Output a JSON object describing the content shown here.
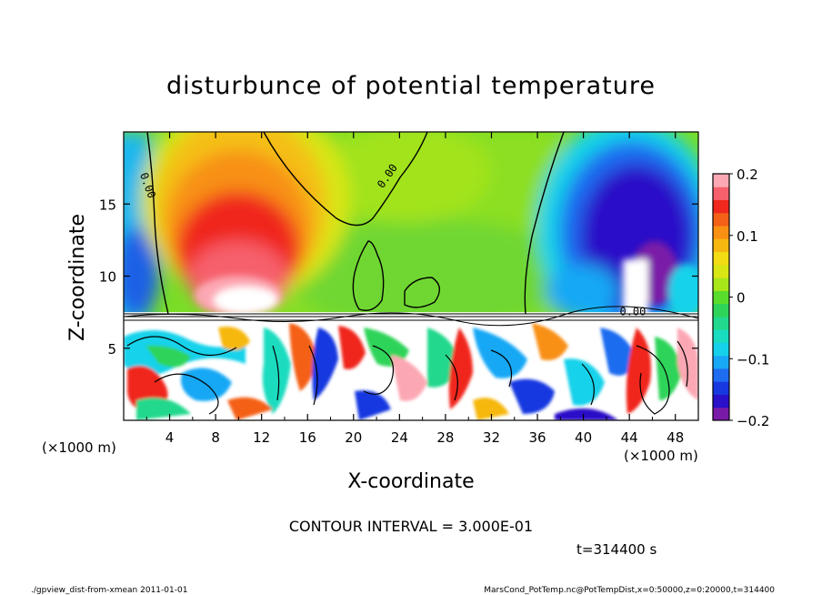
{
  "chart_data": {
    "type": "heatmap",
    "title": "disturbunce of potential temperature",
    "xlabel": "X-coordinate",
    "ylabel": "Z-coordinate",
    "x_unit": "(×1000 m)",
    "y_unit": "(×1000 m)",
    "xlim": [
      0,
      50
    ],
    "ylim": [
      0,
      20
    ],
    "x_ticks": [
      4,
      8,
      12,
      16,
      20,
      24,
      28,
      32,
      36,
      40,
      44,
      48
    ],
    "y_ticks": [
      5,
      10,
      15
    ],
    "colorbar": {
      "min": -0.2,
      "max": 0.2,
      "ticks": [
        {
          "value": 0.2,
          "label": "0.2"
        },
        {
          "value": 0.1,
          "label": "0.1"
        },
        {
          "value": 0.0,
          "label": "0"
        },
        {
          "value": -0.1,
          "label": "−0.1"
        },
        {
          "value": -0.2,
          "label": "−0.2"
        }
      ],
      "colors": [
        "#7a1aa8",
        "#2a10c8",
        "#1838e0",
        "#1e6cf0",
        "#19a8f5",
        "#15d2ea",
        "#1adcc0",
        "#22d88c",
        "#2ed45a",
        "#5adc2c",
        "#a8e61a",
        "#d8e614",
        "#f2dc14",
        "#f6b810",
        "#f89014",
        "#f46018",
        "#f0281e",
        "#f6606c",
        "#fca8b4"
      ]
    },
    "contour_interval": "CONTOUR INTERVAL = 3.000E-01",
    "contour_labels": [
      {
        "text": "0.00",
        "x": 1.8,
        "z": 16.2
      },
      {
        "text": "0.00",
        "x": 23.2,
        "z": 16.8
      },
      {
        "text": "0.00",
        "x": 44.3,
        "z": 7.3
      }
    ],
    "time_label": "t=314400 s"
  },
  "footer": {
    "left": "./gpview_dist-from-xmean  2011-01-01",
    "right": "MarsCond_PotTemp.nc@PotTempDist,x=0:50000,z=0:20000,t=314400"
  }
}
